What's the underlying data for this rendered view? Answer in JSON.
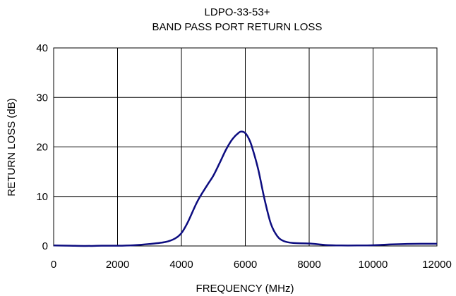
{
  "chart_data": {
    "type": "line",
    "title": "LDPO-33-53+",
    "subtitle": "BAND PASS PORT RETURN LOSS",
    "xlabel": "FREQUENCY (MHz)",
    "ylabel": "RETURN LOSS (dB)",
    "xlim": [
      0,
      12000
    ],
    "ylim": [
      0,
      40
    ],
    "x_ticks": [
      0,
      2000,
      4000,
      6000,
      8000,
      10000,
      12000
    ],
    "y_ticks": [
      0,
      10,
      20,
      30,
      40
    ],
    "grid": true,
    "series": [
      {
        "color": "#0d0d80",
        "x": [
          0,
          500,
          1000,
          1500,
          2000,
          2500,
          3000,
          3500,
          3800,
          4000,
          4200,
          4500,
          4800,
          5000,
          5200,
          5400,
          5600,
          5800,
          5900,
          6000,
          6100,
          6200,
          6400,
          6600,
          6800,
          7000,
          7200,
          7500,
          8000,
          8500,
          9000,
          9500,
          10000,
          10500,
          11000,
          11500,
          12000
        ],
        "y": [
          0.1,
          0.05,
          0.0,
          0.05,
          0.05,
          0.15,
          0.4,
          0.8,
          1.5,
          2.6,
          4.8,
          9.0,
          12.2,
          14.2,
          16.8,
          19.5,
          21.6,
          22.9,
          23.1,
          22.8,
          21.8,
          20.2,
          15.6,
          9.5,
          4.5,
          2.0,
          1.0,
          0.6,
          0.5,
          0.2,
          0.1,
          0.1,
          0.15,
          0.3,
          0.4,
          0.45,
          0.45
        ]
      }
    ]
  }
}
